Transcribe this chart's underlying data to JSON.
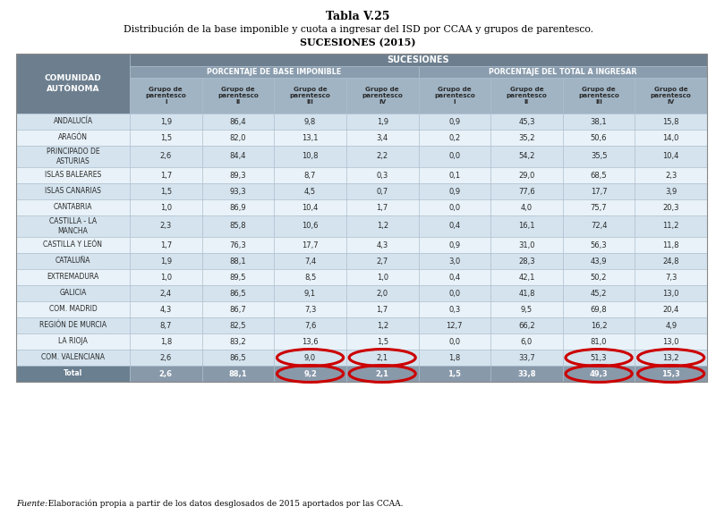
{
  "title1": "Tabla V.25",
  "title2": "Distribución de la base imponible y cuota a ingresar del ISD por CCAA y grupos de parentesco.",
  "title3": "SUCESIONES (2015)",
  "header_main": "SUCESIONES",
  "header_left": "PORCENTAJE DE BASE IMPONIBLE",
  "header_right": "PORCENTAJE DEL TOTAL A INGRESAR",
  "col_header": "COMUNIDAD\nAUTÓNOMA",
  "subheaders": [
    "Grupo de\nparentesco\nI",
    "Grupo de\nparentesco\nII",
    "Grupo de\nparentesco\nIII",
    "Grupo de\nparentesco\nIV",
    "Grupo de\nparentesco\nI",
    "Grupo de\nparentesco\nII",
    "Grupo de\nparentesco\nIII",
    "Grupo de\nparentesco\nIV"
  ],
  "rows": [
    [
      "ANDALUCÍA",
      "1,9",
      "86,4",
      "9,8",
      "1,9",
      "0,9",
      "45,3",
      "38,1",
      "15,8"
    ],
    [
      "ARAGÓN",
      "1,5",
      "82,0",
      "13,1",
      "3,4",
      "0,2",
      "35,2",
      "50,6",
      "14,0"
    ],
    [
      "PRINCIPADO DE\nASTURIAS",
      "2,6",
      "84,4",
      "10,8",
      "2,2",
      "0,0",
      "54,2",
      "35,5",
      "10,4"
    ],
    [
      "ISLAS BALEARES",
      "1,7",
      "89,3",
      "8,7",
      "0,3",
      "0,1",
      "29,0",
      "68,5",
      "2,3"
    ],
    [
      "ISLAS CANARIAS",
      "1,5",
      "93,3",
      "4,5",
      "0,7",
      "0,9",
      "77,6",
      "17,7",
      "3,9"
    ],
    [
      "CANTABRIA",
      "1,0",
      "86,9",
      "10,4",
      "1,7",
      "0,0",
      "4,0",
      "75,7",
      "20,3"
    ],
    [
      "CASTILLA - LA\nMANCHA",
      "2,3",
      "85,8",
      "10,6",
      "1,2",
      "0,4",
      "16,1",
      "72,4",
      "11,2"
    ],
    [
      "CASTILLA Y LEÓN",
      "1,7",
      "76,3",
      "17,7",
      "4,3",
      "0,9",
      "31,0",
      "56,3",
      "11,8"
    ],
    [
      "CATALUÑA",
      "1,9",
      "88,1",
      "7,4",
      "2,7",
      "3,0",
      "28,3",
      "43,9",
      "24,8"
    ],
    [
      "EXTREMADURA",
      "1,0",
      "89,5",
      "8,5",
      "1,0",
      "0,4",
      "42,1",
      "50,2",
      "7,3"
    ],
    [
      "GALICIA",
      "2,4",
      "86,5",
      "9,1",
      "2,0",
      "0,0",
      "41,8",
      "45,2",
      "13,0"
    ],
    [
      "COM. MADRID",
      "4,3",
      "86,7",
      "7,3",
      "1,7",
      "0,3",
      "9,5",
      "69,8",
      "20,4"
    ],
    [
      "REGIÓN DE MURCIA",
      "8,7",
      "82,5",
      "7,6",
      "1,2",
      "12,7",
      "66,2",
      "16,2",
      "4,9"
    ],
    [
      "LA RIOJA",
      "1,8",
      "83,2",
      "13,6",
      "1,5",
      "0,0",
      "6,0",
      "81,0",
      "13,0"
    ],
    [
      "COM. VALENCIANA",
      "2,6",
      "86,5",
      "9,0",
      "2,1",
      "1,8",
      "33,7",
      "51,3",
      "13,2"
    ],
    [
      "Total",
      "2,6",
      "88,1",
      "9,2",
      "2,1",
      "1,5",
      "33,8",
      "49,3",
      "15,3"
    ]
  ],
  "footnote_italic": "Fuente:",
  "footnote_normal": "  Elaboración propia a partir de los datos desglosados de 2015 aportados por las CCAA.",
  "circle_cols": [
    3,
    4,
    7,
    8
  ],
  "color_header_dark": "#6d7f8f",
  "color_header_mid": "#8a9dae",
  "color_header_light": "#a0b4c4",
  "color_row_odd": "#d4e3ee",
  "color_row_even": "#e8f2f8",
  "color_total_row": "#8899aa",
  "color_total_label": "#6a7f90",
  "color_text_dark": "#2a2a2a",
  "color_text_white": "#ffffff",
  "circle_color": "#cc0000",
  "border_color": "#aabbcc"
}
